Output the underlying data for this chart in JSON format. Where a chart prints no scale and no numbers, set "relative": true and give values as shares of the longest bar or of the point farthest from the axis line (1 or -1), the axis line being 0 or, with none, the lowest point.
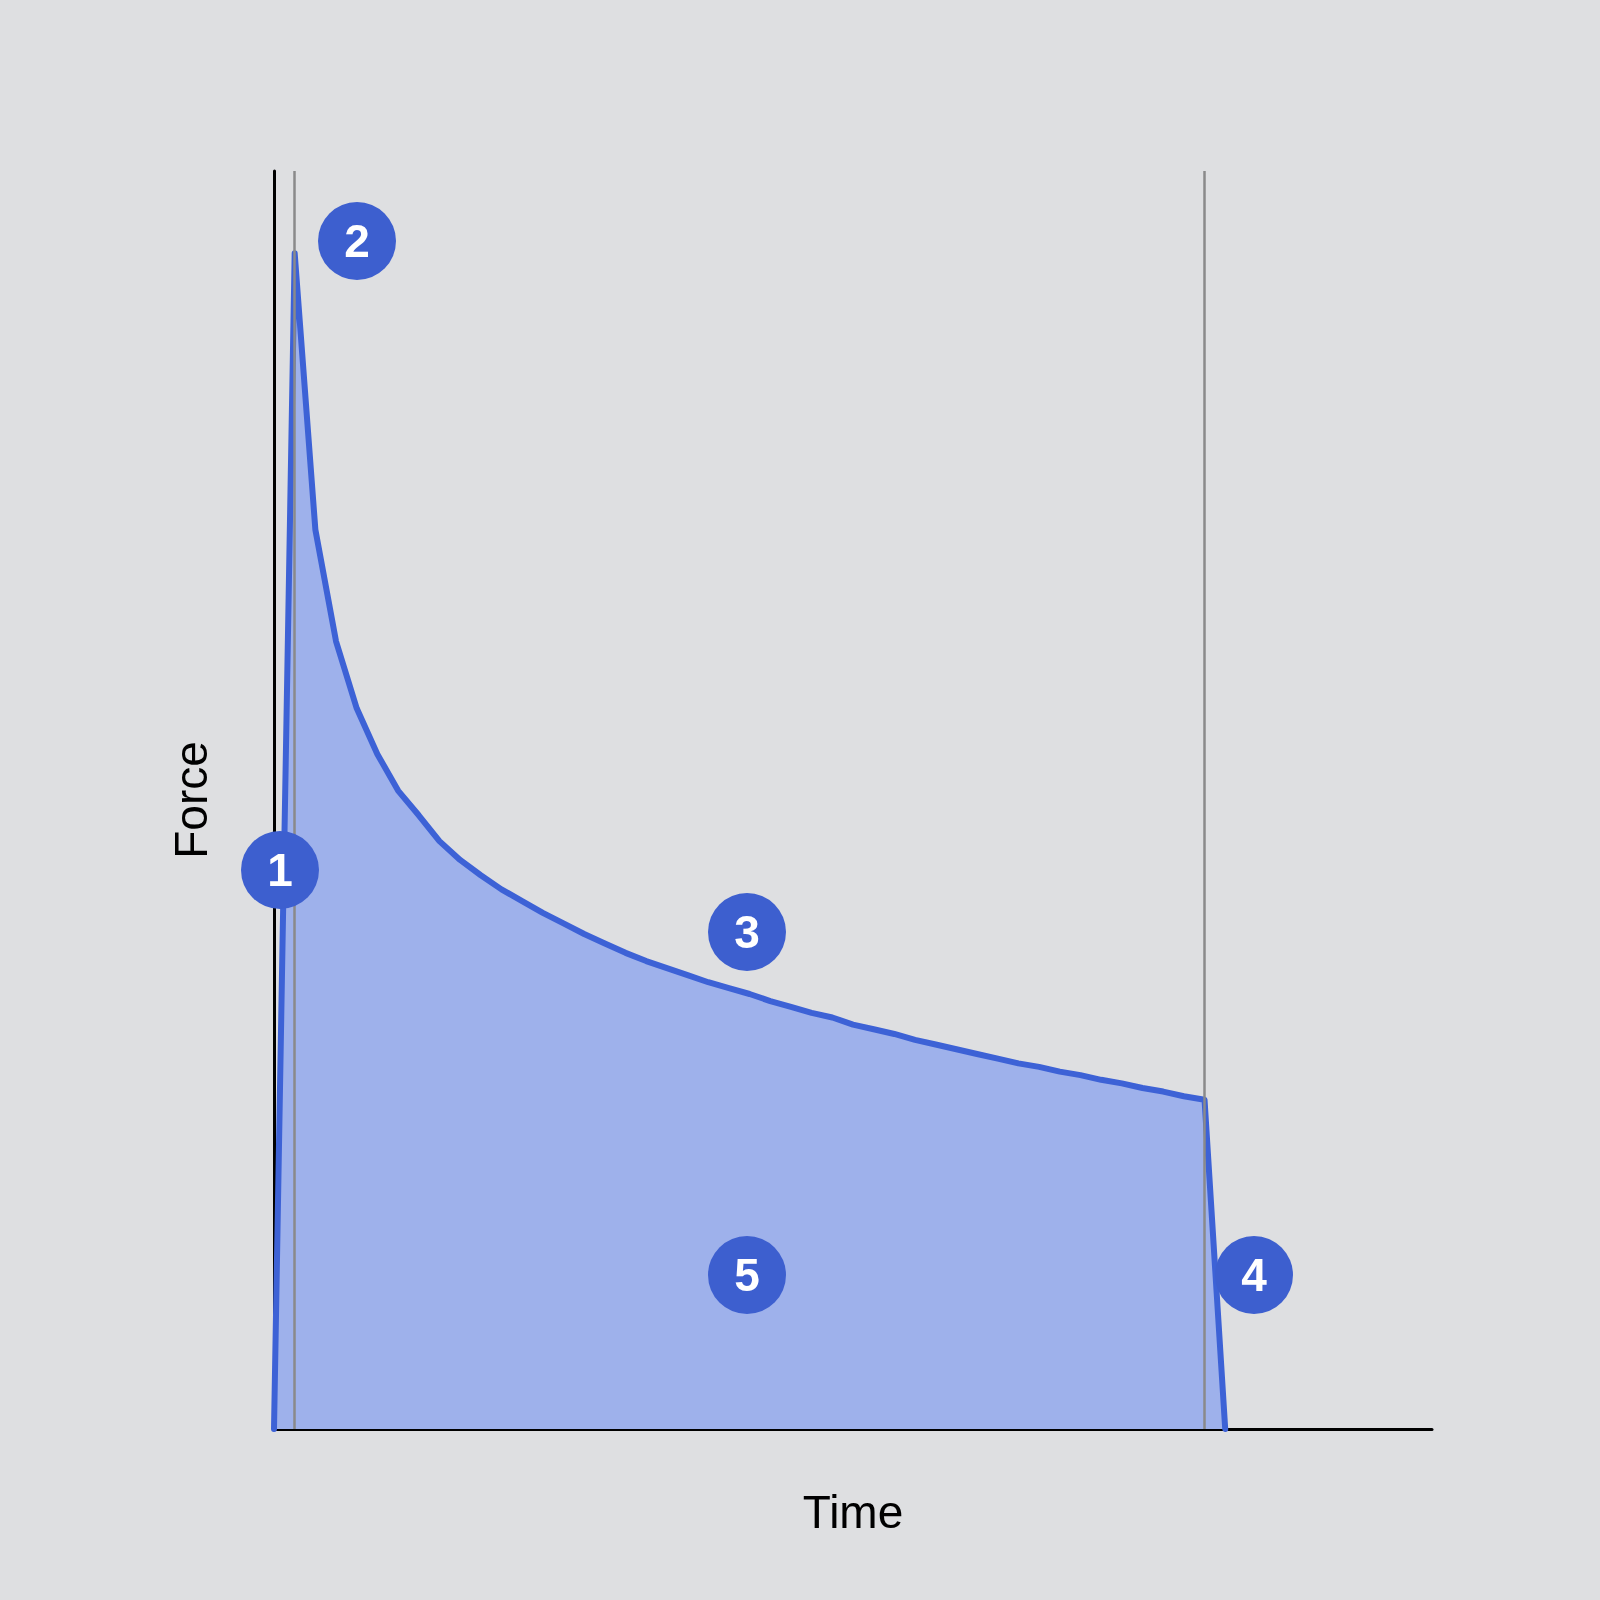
{
  "chart_data": {
    "type": "area",
    "relative": true,
    "xlabel": "Time",
    "ylabel": "Force",
    "categories": [
      null,
      null,
      null,
      null,
      null,
      null,
      null,
      null,
      null,
      null,
      null,
      null,
      null,
      null,
      null,
      null,
      null,
      null,
      null,
      null,
      null,
      null,
      null,
      null,
      null,
      null,
      null,
      null,
      null,
      null,
      null,
      null,
      null,
      null,
      null,
      null,
      null,
      null,
      null,
      null,
      null,
      null,
      null,
      null,
      null,
      null,
      null,
      null,
      null,
      null,
      null,
      null,
      null,
      null,
      null,
      null,
      null
    ],
    "series": [
      {
        "color": "#3d62d6",
        "values": [
          0,
          1,
          0.765,
          0.67,
          0.613,
          0.574,
          0.543,
          0.522,
          0.5,
          0.484,
          0.471,
          0.459,
          0.449,
          0.439,
          0.43,
          0.421,
          0.413,
          0.405,
          0.398,
          0.392,
          0.386,
          0.38,
          0.375,
          0.37,
          0.364,
          0.359,
          0.354,
          0.35,
          0.344,
          0.34,
          0.336,
          0.331,
          0.327,
          0.323,
          0.319,
          0.315,
          0.311,
          0.308,
          0.304,
          0.301,
          0.297,
          0.294,
          0.29,
          0.287,
          0.283,
          0.28,
          0,
          null,
          null,
          null,
          null,
          null,
          null,
          null,
          null,
          null,
          null
        ]
      }
    ],
    "annotations": [
      "1",
      "2",
      "3",
      "4",
      "5"
    ],
    "marker": "none",
    "line_style": "solid"
  }
}
